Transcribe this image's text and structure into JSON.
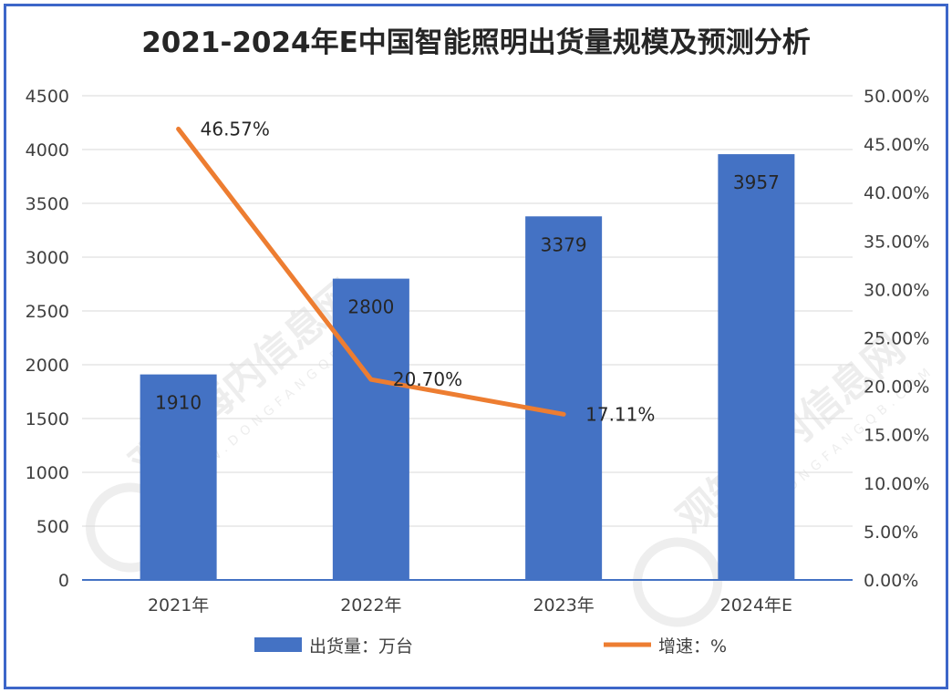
{
  "chart_data": {
    "type": "bar",
    "title": "2021-2024年E中国智能照明出货量规模及预测分析",
    "categories": [
      "2021年",
      "2022年",
      "2023年",
      "2024年E"
    ],
    "series": [
      {
        "name": "出货量：万台",
        "type": "bar",
        "axis": "left",
        "values": [
          1910,
          2800,
          3379,
          3957
        ],
        "labels": [
          "1910",
          "2800",
          "3379",
          "3957"
        ]
      },
      {
        "name": "增速：%",
        "type": "line",
        "axis": "right",
        "values": [
          46.57,
          20.7,
          17.11,
          null
        ],
        "labels": [
          "46.57%",
          "20.70%",
          "17.11%",
          ""
        ]
      }
    ],
    "y_left": {
      "min": 0,
      "max": 4500,
      "step": 500
    },
    "y_right": {
      "min": 0,
      "max": 50,
      "step": 5
    },
    "y_right_ticks": [
      "0.00%",
      "5.00%",
      "10.00%",
      "15.00%",
      "20.00%",
      "25.00%",
      "30.00%",
      "35.00%",
      "40.00%",
      "45.00%",
      "50.00%"
    ],
    "grid": true,
    "legend": "bottom"
  },
  "colors": {
    "bar": "#4472c4",
    "line": "#ed7d31",
    "frame": "#3d66c9",
    "grid": "#d9d9d9"
  },
  "watermark": {
    "text": "观知海内信息网",
    "sub": "WWW.DONGFANGQB.COM"
  }
}
